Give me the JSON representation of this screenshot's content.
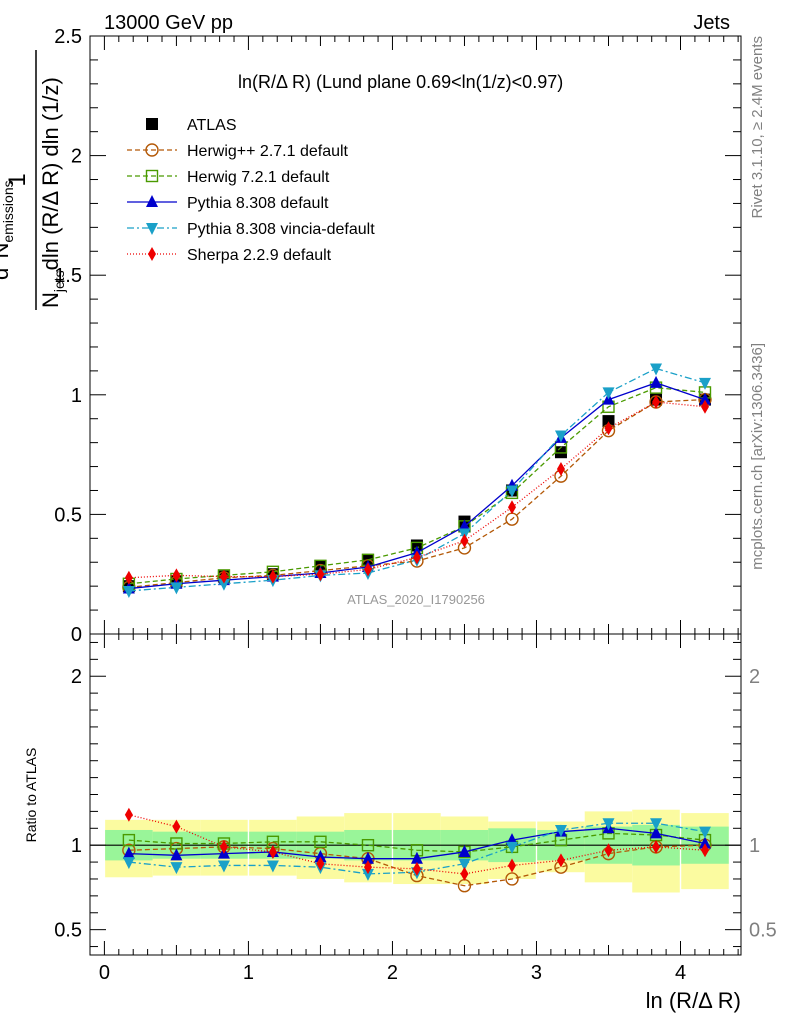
{
  "header": {
    "left": "13000 GeV pp",
    "right": "Jets"
  },
  "side": {
    "rivet": "Rivet 3.1.10, ≥ 2.4M events",
    "mcplots": "mcplots.cern.ch [arXiv:1306.3436]"
  },
  "watermark": "ATLAS_2020_I1790256",
  "chart_data": [
    {
      "type": "scatter",
      "panel": "main",
      "title": "ln(R/Δ R) (Lund plane 0.69<ln(1/z)<0.97)",
      "ylabel_parts": {
        "one": "1",
        "N": "N",
        "jets_sub": "jets",
        "rest": "dln (R/Δ R) dln (1/z)",
        "d2": "d",
        "sup2": "2",
        "Nemis": "N",
        "emis_sub": "emissions"
      },
      "xlabel": "ln (R/Δ R)",
      "xlim": [
        -0.1,
        4.42
      ],
      "ylim": [
        0,
        2.5
      ],
      "x_ticks": [
        "0",
        "1",
        "2",
        "3",
        "4"
      ],
      "y_ticks": [
        "0",
        "0.5",
        "1",
        "1.5",
        "2",
        "2.5"
      ],
      "x": [
        0.17,
        0.5,
        0.83,
        1.17,
        1.5,
        1.83,
        2.17,
        2.5,
        2.83,
        3.17,
        3.5,
        3.83,
        4.17
      ],
      "series": [
        {
          "name": "ATLAS",
          "color": "#000000",
          "marker": "square-filled",
          "dash": "none",
          "values": [
            0.2,
            0.22,
            0.24,
            0.25,
            0.28,
            0.31,
            0.37,
            0.47,
            0.6,
            0.76,
            0.89,
            0.98,
            0.98
          ]
        },
        {
          "name": "Herwig++ 2.7.1 default",
          "color": "#b35806",
          "marker": "circle-open",
          "dash": "5,3",
          "values": [
            0.195,
            0.215,
            0.235,
            0.245,
            0.265,
            0.285,
            0.305,
            0.36,
            0.48,
            0.66,
            0.85,
            0.97,
            0.98
          ]
        },
        {
          "name": "Herwig 7.2.1 default",
          "color": "#4a9a00",
          "marker": "square-open",
          "dash": "5,3",
          "values": [
            0.21,
            0.23,
            0.245,
            0.26,
            0.285,
            0.31,
            0.36,
            0.45,
            0.59,
            0.78,
            0.95,
            1.03,
            1.01
          ]
        },
        {
          "name": "Pythia 8.308 default",
          "color": "#0000cc",
          "marker": "triangle-up",
          "dash": "none",
          "values": [
            0.19,
            0.21,
            0.225,
            0.24,
            0.255,
            0.28,
            0.34,
            0.45,
            0.62,
            0.82,
            0.98,
            1.05,
            0.98
          ]
        },
        {
          "name": "Pythia 8.308 vincia-default",
          "color": "#1aa0c8",
          "marker": "triangle-down",
          "dash": "7,3,2,3",
          "values": [
            0.18,
            0.195,
            0.21,
            0.225,
            0.245,
            0.255,
            0.31,
            0.42,
            0.6,
            0.83,
            1.01,
            1.11,
            1.05
          ]
        },
        {
          "name": "Sherpa 2.2.9 default",
          "color": "#ee0000",
          "marker": "diamond",
          "dash": "1,2",
          "values": [
            0.235,
            0.245,
            0.24,
            0.24,
            0.25,
            0.27,
            0.32,
            0.39,
            0.53,
            0.69,
            0.86,
            0.97,
            0.95
          ]
        }
      ],
      "legend_position": "top-left"
    },
    {
      "type": "scatter",
      "panel": "ratio",
      "ylabel": "Ratio to ATLAS",
      "ylim": [
        0.35,
        2.25
      ],
      "y_ticks": [
        "0.5",
        "1",
        "2"
      ],
      "x": [
        0.17,
        0.5,
        0.83,
        1.17,
        1.5,
        1.83,
        2.17,
        2.5,
        2.83,
        3.17,
        3.5,
        3.83,
        4.17
      ],
      "band_inner": {
        "color": "#99f599",
        "lo": [
          0.91,
          0.92,
          0.92,
          0.92,
          0.92,
          0.91,
          0.91,
          0.91,
          0.9,
          0.91,
          0.89,
          0.88,
          0.89
        ],
        "hi": [
          1.09,
          1.08,
          1.08,
          1.08,
          1.08,
          1.09,
          1.09,
          1.09,
          1.1,
          1.09,
          1.11,
          1.12,
          1.11
        ]
      },
      "band_outer": {
        "color": "#fbfba0",
        "lo": [
          0.81,
          0.82,
          0.82,
          0.82,
          0.8,
          0.78,
          0.77,
          0.77,
          0.8,
          0.84,
          0.78,
          0.72,
          0.74
        ],
        "hi": [
          1.15,
          1.15,
          1.15,
          1.15,
          1.17,
          1.19,
          1.19,
          1.17,
          1.14,
          1.14,
          1.2,
          1.21,
          1.19
        ]
      },
      "series": [
        {
          "name": "Herwig++ 2.7.1 default",
          "values": [
            0.97,
            0.98,
            0.99,
            0.98,
            0.95,
            0.92,
            0.82,
            0.76,
            0.8,
            0.87,
            0.95,
            0.99,
            1.0
          ]
        },
        {
          "name": "Herwig 7.2.1 default",
          "values": [
            1.03,
            1.01,
            1.01,
            1.02,
            1.02,
            1.0,
            0.97,
            0.96,
            0.99,
            1.03,
            1.07,
            1.06,
            1.03
          ]
        },
        {
          "name": "Pythia 8.308 default",
          "values": [
            0.95,
            0.94,
            0.95,
            0.96,
            0.93,
            0.92,
            0.92,
            0.96,
            1.03,
            1.08,
            1.1,
            1.07,
            1.01
          ]
        },
        {
          "name": "Pythia 8.308 vincia-default",
          "values": [
            0.9,
            0.87,
            0.88,
            0.88,
            0.87,
            0.83,
            0.84,
            0.89,
            0.99,
            1.09,
            1.13,
            1.13,
            1.08
          ]
        },
        {
          "name": "Sherpa 2.2.9 default",
          "values": [
            1.18,
            1.11,
            0.99,
            0.96,
            0.89,
            0.87,
            0.86,
            0.83,
            0.88,
            0.91,
            0.97,
            0.99,
            0.97
          ]
        }
      ]
    }
  ]
}
